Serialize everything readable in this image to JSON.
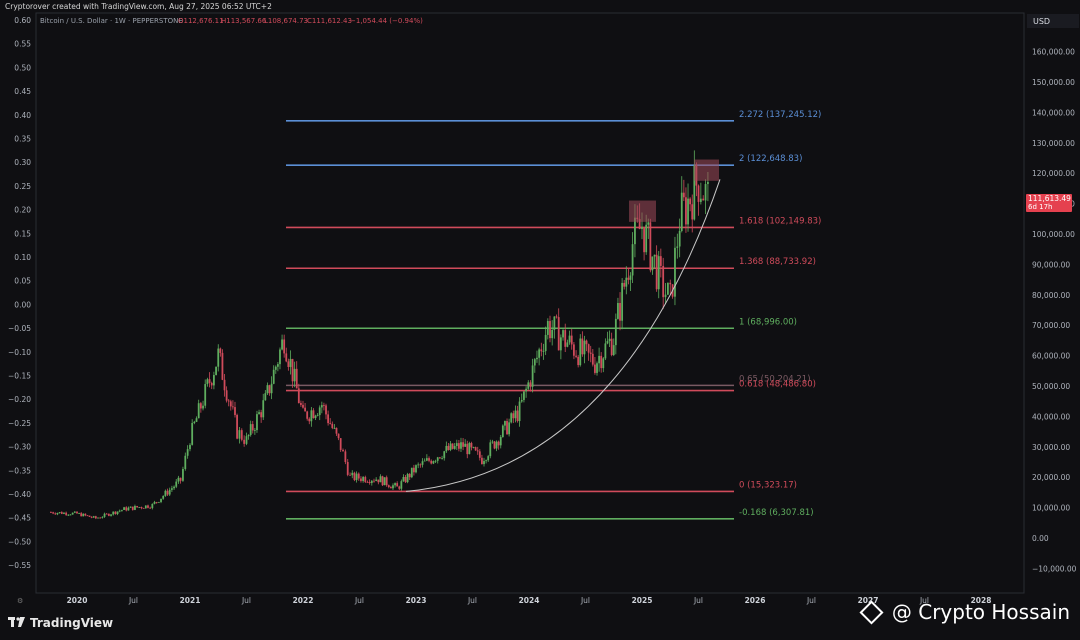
{
  "header": {
    "created_by": "Cryptorover created with TradingView.com, Aug 27, 2025 06:52 UTC+2"
  },
  "symbol": {
    "title": "Bitcoin / U.S. Dollar · 1W · PEPPERSTONE",
    "o": "O112,676.11",
    "h": "H113,567.66",
    "l": "L108,674.73",
    "c": "C111,612.43",
    "change": "−1,054.44 (−0.94%)"
  },
  "price_axis": {
    "currency": "USD",
    "labels": [
      "160,000.00",
      "150,000.00",
      "140,000.00",
      "130,000.00",
      "120,000.00",
      "110,000.00",
      "100,000.00",
      "90,000.00",
      "80,000.00",
      "70,000.00",
      "60,000.00",
      "50,000.00",
      "40,000.00",
      "30,000.00",
      "20,000.00",
      "10,000.00",
      "0.00",
      "−10,000.00"
    ],
    "current_price": "111,613.49",
    "countdown": "6d 17h",
    "current_color": "#e5414f"
  },
  "left_axis": {
    "labels": [
      "0.60",
      "0.55",
      "0.50",
      "0.45",
      "0.40",
      "0.35",
      "0.30",
      "0.25",
      "0.20",
      "0.15",
      "0.10",
      "0.05",
      "0.00",
      "−0.05",
      "−0.10",
      "−0.15",
      "−0.20",
      "−0.25",
      "−0.30",
      "−0.35",
      "−0.40",
      "−0.45",
      "−0.50",
      "−0.55"
    ]
  },
  "time_axis": {
    "labels": [
      "2020",
      "Jul",
      "2021",
      "Jul",
      "2022",
      "Jul",
      "2023",
      "Jul",
      "2024",
      "Jul",
      "2025",
      "Jul",
      "2026",
      "Jul",
      "2027",
      "Jul",
      "2028"
    ]
  },
  "fib_levels": [
    {
      "label": "2.272 (137,245.12)",
      "price": 137245.12,
      "color": "#5b8fd6"
    },
    {
      "label": "2 (122,648.83)",
      "price": 122648.83,
      "color": "#5b8fd6"
    },
    {
      "label": "1.618 (102,149.83)",
      "price": 102149.83,
      "color": "#d04b5b"
    },
    {
      "label": "1.368 (88,733.92)",
      "price": 88733.92,
      "color": "#d04b5b"
    },
    {
      "label": "1 (68,996.00)",
      "price": 68996.0,
      "color": "#5fae5f"
    },
    {
      "label": "0.65 (50,204.21)",
      "price": 50204.21,
      "color": "#7a5a63"
    },
    {
      "label": "0.618 (48,486.80)",
      "price": 48486.8,
      "color": "#d04b5b"
    },
    {
      "label": "0 (15,323.17)",
      "price": 15323.17,
      "color": "#d04b5b"
    },
    {
      "label": "-0.168 (6,307.81)",
      "price": 6307.81,
      "color": "#5fae5f"
    }
  ],
  "chart_data": {
    "type": "line",
    "title": "Bitcoin / U.S. Dollar · 1W · PEPPERSTONE",
    "xlabel": "",
    "ylabel": "USD",
    "ylim": [
      -15000,
      170000
    ],
    "x": [
      "2019-10",
      "2020-01",
      "2020-03",
      "2020-06",
      "2020-09",
      "2020-12",
      "2021-01",
      "2021-04",
      "2021-06",
      "2021-07",
      "2021-09",
      "2021-11",
      "2022-01",
      "2022-03",
      "2022-05",
      "2022-06",
      "2022-09",
      "2022-11",
      "2023-01",
      "2023-04",
      "2023-06",
      "2023-08",
      "2023-10",
      "2023-12",
      "2024-03",
      "2024-06",
      "2024-08",
      "2024-10",
      "2024-12",
      "2025-01",
      "2025-03",
      "2025-04",
      "2025-05",
      "2025-07",
      "2025-08"
    ],
    "series": [
      {
        "values": [
          8500,
          8000,
          6500,
          9500,
          10800,
          19000,
          33000,
          60000,
          35000,
          32000,
          45000,
          66000,
          40000,
          44000,
          30000,
          20000,
          19500,
          16500,
          23000,
          28500,
          30500,
          26000,
          34000,
          42000,
          70000,
          62000,
          58000,
          66000,
          97000,
          103000,
          84000,
          78000,
          105000,
          118000,
          111600
        ]
      }
    ],
    "annotations": {
      "fib_range": {
        "low": 15323.17,
        "high": 68996.0
      }
    }
  },
  "branding": {
    "tv_logo": "TradingView",
    "watermark": "@ Crypto Hossain"
  },
  "colors": {
    "background": "#0f0f12",
    "up": "#5fae5f",
    "down": "#d04b5b",
    "grid": "#1b1c22"
  }
}
